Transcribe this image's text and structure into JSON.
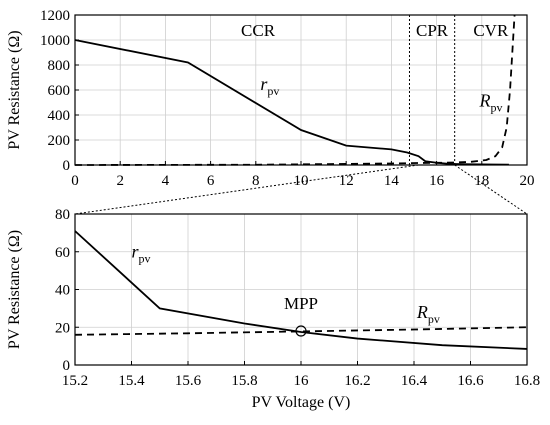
{
  "chart_data": [
    {
      "type": "line",
      "ylabel": "PV Resistance (Ω)",
      "xlim": [
        0,
        20
      ],
      "ylim": [
        0,
        1200
      ],
      "xticks": [
        "0",
        "2",
        "4",
        "6",
        "8",
        "10",
        "12",
        "14",
        "16",
        "18",
        "20"
      ],
      "yticks": [
        "0",
        "200",
        "400",
        "600",
        "800",
        "1000",
        "1200"
      ],
      "grid": true,
      "regions": [
        {
          "label": "CCR",
          "x_start": 0,
          "x_end": 14.8
        },
        {
          "label": "CPR",
          "x_start": 14.8,
          "x_end": 16.8
        },
        {
          "label": "CVR",
          "x_start": 16.8,
          "x_end": 20
        }
      ],
      "series": [
        {
          "name": "r",
          "name_sub": "pv",
          "style": "solid",
          "x": [
            0,
            5,
            10,
            12,
            14,
            14.7,
            15.2,
            15.5,
            16,
            16.5,
            16.8,
            17.5,
            18.5,
            19.2
          ],
          "y": [
            1000,
            820,
            280,
            155,
            125,
            100,
            71,
            30,
            18,
            10,
            8,
            6,
            4,
            3
          ]
        },
        {
          "name": "R",
          "name_sub": "pv",
          "style": "dashed",
          "x": [
            0,
            8,
            14,
            15.2,
            16,
            16.8,
            17.5,
            18.2,
            18.6,
            18.9,
            19.1,
            19.25,
            19.35,
            19.45
          ],
          "y": [
            0,
            2,
            12,
            16,
            17.5,
            20,
            25,
            40,
            70,
            140,
            300,
            600,
            900,
            1200
          ]
        }
      ]
    },
    {
      "type": "line",
      "xlabel": "PV Voltage (V)",
      "ylabel": "PV Resistance (Ω)",
      "xlim": [
        15.2,
        16.8
      ],
      "ylim": [
        0,
        80
      ],
      "xticks": [
        "15.2",
        "15.4",
        "15.6",
        "15.8",
        "16",
        "16.2",
        "16.4",
        "16.6",
        "16.8"
      ],
      "yticks": [
        "0",
        "20",
        "40",
        "60",
        "80"
      ],
      "grid": true,
      "annotation": {
        "label": "MPP",
        "x": 16.0,
        "y": 18
      },
      "series": [
        {
          "name": "r",
          "name_sub": "pv",
          "style": "solid",
          "x": [
            15.2,
            15.5,
            15.8,
            16.0,
            16.2,
            16.5,
            16.8
          ],
          "y": [
            71,
            30,
            22,
            17.5,
            14,
            10.5,
            8.5
          ]
        },
        {
          "name": "R",
          "name_sub": "pv",
          "style": "dashed",
          "x": [
            15.2,
            15.6,
            16.0,
            16.4,
            16.8
          ],
          "y": [
            16,
            16.8,
            17.8,
            18.8,
            20
          ]
        }
      ]
    }
  ]
}
